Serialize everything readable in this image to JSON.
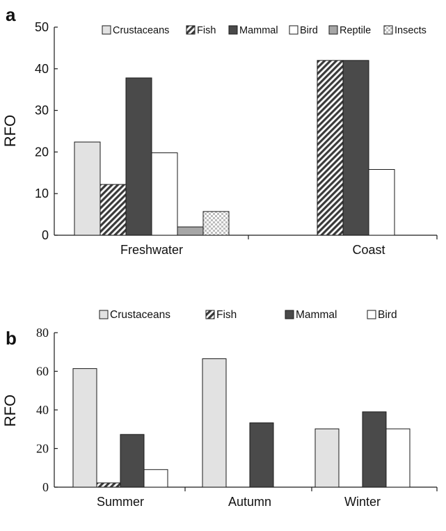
{
  "chart_data": [
    {
      "panel_label": "a",
      "type": "bar",
      "ylabel": "RFO",
      "ylim": [
        0,
        50
      ],
      "yticks": [
        "0",
        "10",
        "20",
        "30",
        "40",
        "50"
      ],
      "categories": [
        "Freshwater",
        "Coast"
      ],
      "legend_position": "top-right",
      "grid": false,
      "series": [
        {
          "name": "Crustaceans",
          "pattern": "light-fill",
          "values": [
            22.4,
            0
          ]
        },
        {
          "name": "Fish",
          "pattern": "hatched",
          "values": [
            12.2,
            42.0
          ]
        },
        {
          "name": "Mammal",
          "pattern": "dark-fill",
          "values": [
            37.8,
            42.0
          ]
        },
        {
          "name": "Bird",
          "pattern": "white-fill",
          "values": [
            19.8,
            15.8
          ]
        },
        {
          "name": "Reptile",
          "pattern": "gray-fill",
          "values": [
            2.0,
            0
          ]
        },
        {
          "name": "Insects",
          "pattern": "checker",
          "values": [
            5.7,
            0
          ]
        }
      ]
    },
    {
      "panel_label": "b",
      "type": "bar",
      "ylabel": "RFO",
      "ylim": [
        0,
        80
      ],
      "yticks": [
        "0",
        "20",
        "40",
        "60",
        "80"
      ],
      "categories": [
        "Summer",
        "Autumn",
        "Winter"
      ],
      "legend_position": "top",
      "grid": false,
      "series": [
        {
          "name": "Crustaceans",
          "pattern": "light-fill",
          "values": [
            61.4,
            66.5,
            30.2
          ]
        },
        {
          "name": "Fish",
          "pattern": "hatched",
          "values": [
            2.2,
            0,
            0
          ]
        },
        {
          "name": "Mammal",
          "pattern": "dark-fill",
          "values": [
            27.3,
            33.3,
            39.0
          ]
        },
        {
          "name": "Bird",
          "pattern": "white-fill",
          "values": [
            9.1,
            0,
            30.2
          ]
        }
      ]
    }
  ],
  "colors": {
    "light-fill": "#e2e2e2",
    "dark-fill": "#4a4a4a",
    "white-fill": "#ffffff",
    "gray-fill": "#a6a6a6",
    "hatch-line": "#3a3a3a",
    "checker": "#bdbdbd",
    "stroke": "#1a1a1a"
  }
}
